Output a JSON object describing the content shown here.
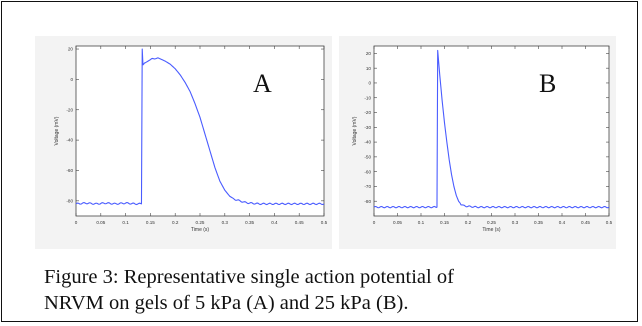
{
  "caption": {
    "line1": "Figure 3: Representative single action potential of",
    "line2": "NRVM on gels of 5 kPa (A) and 25 kPa (B)."
  },
  "colors": {
    "trace": "#4a5cff",
    "axis": "#444444",
    "panel_bg": "#f3f3f3"
  },
  "chart_data": [
    {
      "type": "line",
      "panel_letter": "A",
      "xlabel": "Time (s)",
      "ylabel": "Voltage (mV)",
      "xlim": [
        0,
        0.5
      ],
      "ylim": [
        -90,
        22
      ],
      "xticks": [
        0,
        0.05,
        0.1,
        0.15,
        0.2,
        0.25,
        0.3,
        0.35,
        0.4,
        0.45,
        0.5
      ],
      "xtick_labels": [
        "0",
        "0.05",
        "0.1",
        "0.15",
        "0.2",
        "0.25",
        "0.3",
        "0.35",
        "0.4",
        "0.45",
        "0.5"
      ],
      "yticks": [
        -80,
        -60,
        -40,
        -20,
        0,
        20
      ],
      "ytick_labels": [
        "-80",
        "-60",
        "-40",
        "-20",
        "0",
        "20"
      ],
      "series": [
        {
          "x": [
            0,
            0.02,
            0.04,
            0.06,
            0.08,
            0.1,
            0.12,
            0.132,
            0.1335,
            0.135,
            0.14,
            0.15,
            0.16,
            0.17,
            0.18,
            0.19,
            0.2,
            0.21,
            0.22,
            0.23,
            0.24,
            0.25,
            0.26,
            0.27,
            0.28,
            0.29,
            0.3,
            0.31,
            0.32,
            0.33,
            0.34,
            0.35,
            0.37,
            0.4,
            0.45,
            0.5
          ],
          "y": [
            -82,
            -81.5,
            -82,
            -81.5,
            -82,
            -81.5,
            -82,
            -82,
            20,
            10,
            11,
            13,
            14,
            13.5,
            12,
            10,
            7,
            3,
            -2,
            -8,
            -16,
            -25,
            -36,
            -47,
            -58,
            -67,
            -73,
            -77,
            -79,
            -80,
            -81,
            -81.5,
            -82,
            -82,
            -82,
            -82
          ]
        }
      ]
    },
    {
      "type": "line",
      "panel_letter": "B",
      "xlabel": "Time (s)",
      "ylabel": "Voltage (mV)",
      "xlim": [
        0,
        0.5
      ],
      "ylim": [
        -90,
        25
      ],
      "xticks": [
        0,
        0.05,
        0.1,
        0.15,
        0.2,
        0.25,
        0.3,
        0.35,
        0.4,
        0.45,
        0.5
      ],
      "xtick_labels": [
        "0",
        "0.05",
        "0.1",
        "0.15",
        "0.2",
        "0.25",
        "0.3",
        "0.35",
        "0.4",
        "0.45",
        "0.5"
      ],
      "yticks": [
        -80,
        -70,
        -60,
        -50,
        -40,
        -30,
        -20,
        -10,
        0,
        10,
        20
      ],
      "ytick_labels": [
        "-80",
        "-70",
        "-60",
        "-50",
        "-40",
        "-30",
        "-20",
        "-10",
        "0",
        "10",
        "20"
      ],
      "series": [
        {
          "x": [
            0,
            0.05,
            0.1,
            0.125,
            0.134,
            0.1355,
            0.14,
            0.145,
            0.15,
            0.155,
            0.16,
            0.165,
            0.17,
            0.175,
            0.18,
            0.185,
            0.19,
            0.2,
            0.22,
            0.25,
            0.3,
            0.4,
            0.5
          ],
          "y": [
            -84,
            -84,
            -84,
            -84,
            -84,
            22,
            5,
            -12,
            -27,
            -40,
            -52,
            -62,
            -70,
            -76,
            -80,
            -82,
            -83,
            -83.5,
            -84,
            -84,
            -84,
            -84,
            -84
          ]
        }
      ]
    }
  ]
}
